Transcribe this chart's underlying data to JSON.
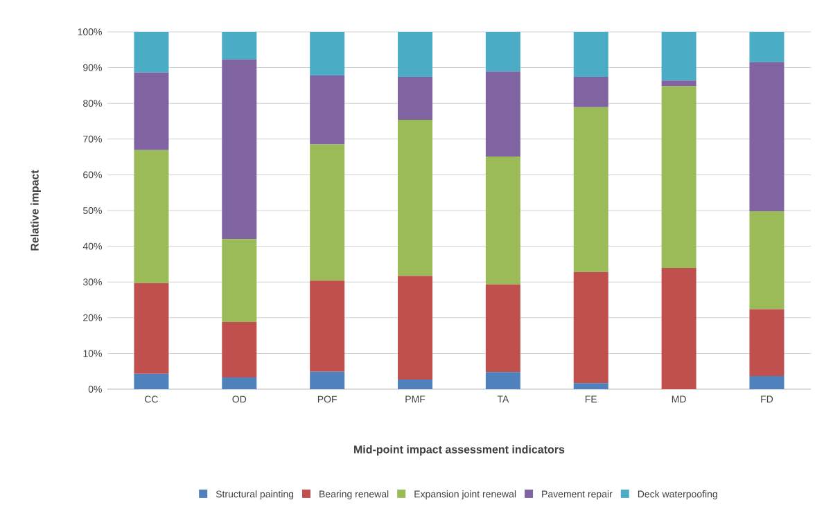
{
  "chart_data": {
    "type": "bar",
    "stacked": true,
    "xlabel": "Mid-point impact assessment indicators",
    "ylabel": "Relative impact",
    "categories": [
      "CC",
      "OD",
      "POF",
      "PMF",
      "TA",
      "FE",
      "MD",
      "FD"
    ],
    "series": [
      {
        "name": "Structural painting",
        "color": "#4f81bd",
        "values": [
          4.3,
          3.3,
          4.9,
          2.7,
          4.8,
          1.7,
          0,
          3.7
        ]
      },
      {
        "name": "Bearing renewal",
        "color": "#c0504d",
        "values": [
          25.4,
          15.5,
          25.5,
          29.0,
          24.5,
          31.1,
          33.9,
          18.7
        ]
      },
      {
        "name": "Expansion joint renewal",
        "color": "#9bbb59",
        "values": [
          37.2,
          23.2,
          38.1,
          43.7,
          35.8,
          46.1,
          50.9,
          27.4
        ]
      },
      {
        "name": "Pavement repair",
        "color": "#8064a2",
        "values": [
          21.7,
          50.3,
          19.3,
          12.0,
          23.8,
          8.5,
          1.6,
          41.7
        ]
      },
      {
        "name": "Deck waterpoofing",
        "color": "#4bacc6",
        "values": [
          11.4,
          7.7,
          12.2,
          12.6,
          11.1,
          12.6,
          13.6,
          8.5
        ]
      }
    ],
    "ylim": [
      0,
      100
    ],
    "yticks": [
      {
        "value": 0,
        "label": "0%"
      },
      {
        "value": 10,
        "label": "10%"
      },
      {
        "value": 20,
        "label": "20%"
      },
      {
        "value": 30,
        "label": "30%"
      },
      {
        "value": 40,
        "label": "40%"
      },
      {
        "value": 50,
        "label": "50%"
      },
      {
        "value": 60,
        "label": "60%"
      },
      {
        "value": 70,
        "label": "70%"
      },
      {
        "value": 80,
        "label": "80%"
      },
      {
        "value": 90,
        "label": "90%"
      },
      {
        "value": 100,
        "label": "100%"
      }
    ],
    "grid": "y",
    "legend": "bottom"
  }
}
